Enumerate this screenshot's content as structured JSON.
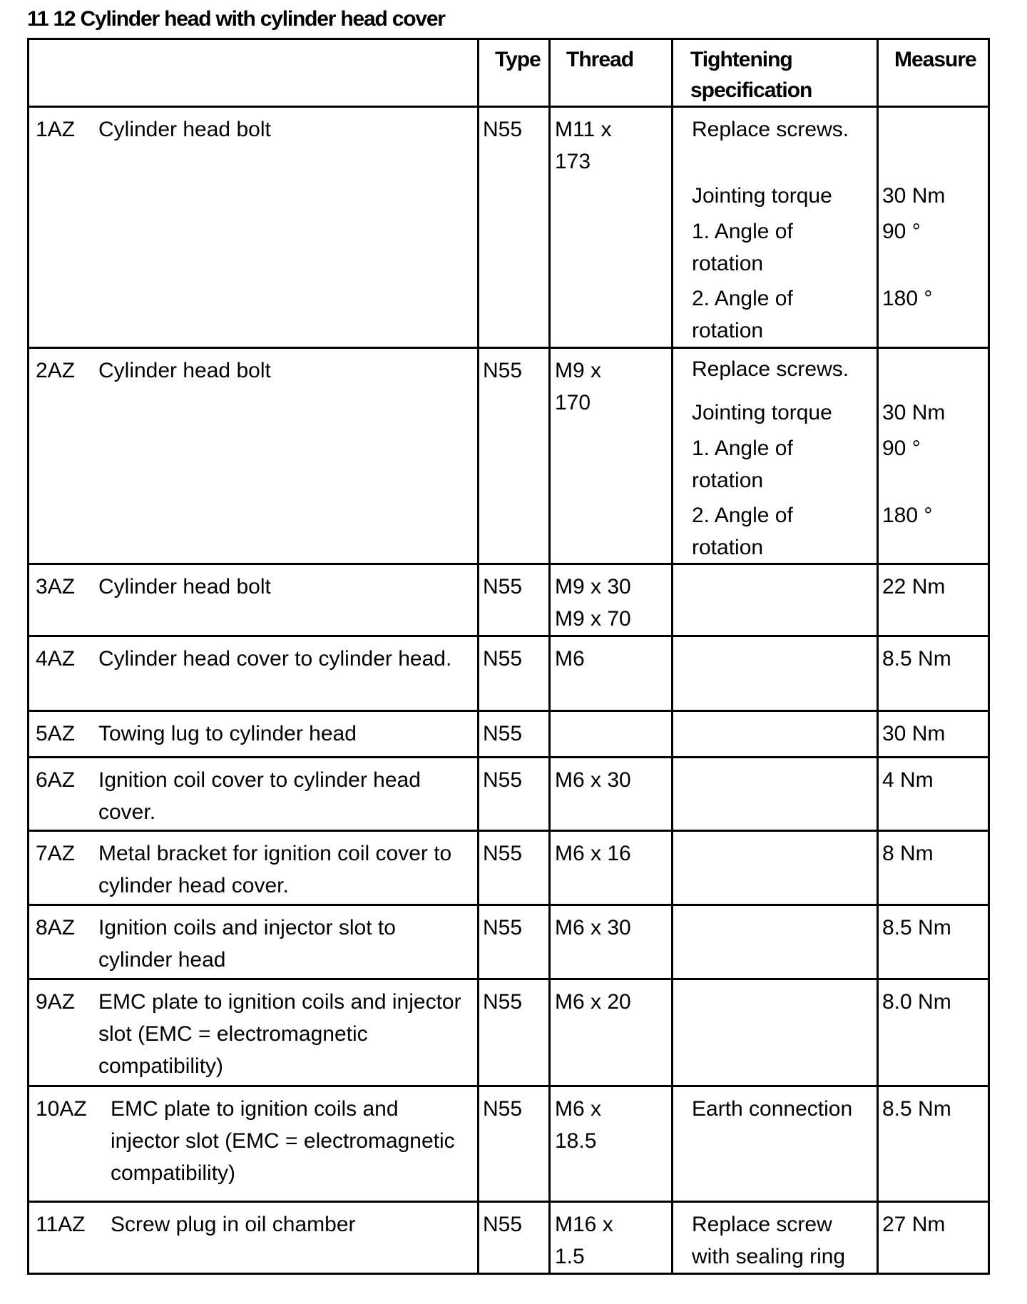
{
  "title": "11 12 Cylinder head with cylinder head cover",
  "headers": {
    "description": "",
    "type": "Type",
    "thread": "Thread",
    "spec": "Tightening specification",
    "measure": "Measure"
  },
  "rows": [
    {
      "id": "1AZ",
      "desc": "Cylinder head bolt",
      "type": "N55",
      "thread": "M11 x 173",
      "spec_lines": [
        "Replace screws.",
        "Jointing torque",
        "1. Angle of rotation",
        "2. Angle of rotation"
      ],
      "measures": [
        "30 Nm",
        "90 °",
        "180 °"
      ]
    },
    {
      "id": "2AZ",
      "desc": "Cylinder head bolt",
      "type": "N55",
      "thread": "M9 x 170",
      "spec_lines": [
        "Replace screws.",
        "Jointing torque",
        "1. Angle of rotation",
        "2. Angle of rotation"
      ],
      "measures": [
        "30 Nm",
        "90 °",
        "180 °"
      ]
    },
    {
      "id": "3AZ",
      "desc": "Cylinder head bolt",
      "type": "N55",
      "thread": "M9 x 30",
      "thread2": "M9 x 70",
      "spec": "",
      "measure": "22 Nm"
    },
    {
      "id": "4AZ",
      "desc": "Cylinder head cover to cylinder head.",
      "type": "N55",
      "thread": "M6",
      "spec": "",
      "measure": "8.5 Nm"
    },
    {
      "id": "5AZ",
      "desc": "Towing lug to cylinder head",
      "type": "N55",
      "thread": "",
      "spec": "",
      "measure": "30 Nm"
    },
    {
      "id": "6AZ",
      "desc": "Ignition coil cover to cylinder head cover.",
      "type": "N55",
      "thread": "M6 x 30",
      "spec": "",
      "measure": "4 Nm"
    },
    {
      "id": "7AZ",
      "desc": "Metal bracket for ignition coil cover to cylinder head cover.",
      "type": "N55",
      "thread": "M6 x 16",
      "spec": "",
      "measure": "8 Nm"
    },
    {
      "id": "8AZ",
      "desc": "Ignition coils and injector slot to cylinder head",
      "type": "N55",
      "thread": "M6 x 30",
      "spec": "",
      "measure": "8.5 Nm"
    },
    {
      "id": "9AZ",
      "desc": "EMC plate to ignition coils and injector slot (EMC = electromagnetic compatibility)",
      "type": "N55",
      "thread": "M6 x 20",
      "spec": "",
      "measure": "8.0 Nm"
    },
    {
      "id": "10AZ",
      "desc": "EMC plate to ignition coils and injector slot (EMC = electromagnetic compatibility)",
      "type": "N55",
      "thread": "M6 x 18.5",
      "spec": "Earth connection",
      "measure": "8.5 Nm"
    },
    {
      "id": "11AZ",
      "desc": "Screw plug in oil chamber",
      "type": "N55",
      "thread": "M16 x 1.5",
      "spec": "Replace screw with sealing ring",
      "measure": "27 Nm"
    }
  ]
}
